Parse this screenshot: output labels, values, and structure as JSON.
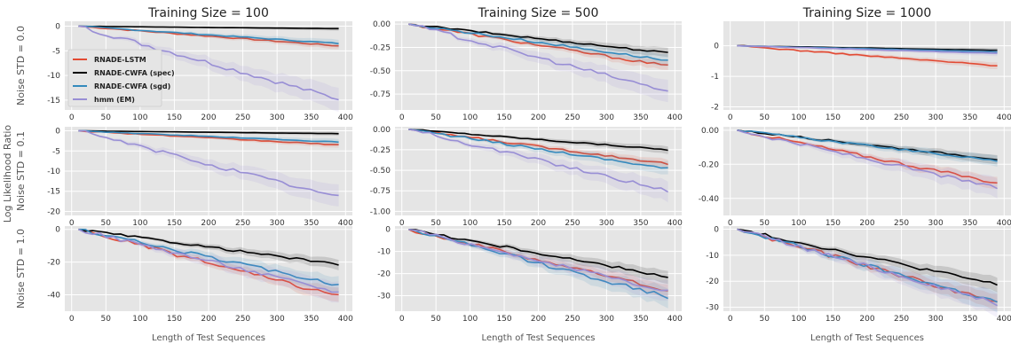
{
  "figure": {
    "ylabel_shared": "Log Likelihood Ratio",
    "xlabel": "Length of Test Sequences",
    "legend": [
      "RNADE-LSTM",
      "RNADE-CWFA (spec)",
      "RNADE-CWFA (sgd)",
      "hmm (EM)"
    ]
  },
  "colors": {
    "RNADE-LSTM": "#e24a33",
    "RNADE-CWFA (spec)": "#000000",
    "RNADE-CWFA (sgd)": "#348abd",
    "hmm (EM)": "#988ed5",
    "panel_bg": "#e5e5e5",
    "grid": "#ffffff"
  },
  "chart_data": [
    {
      "type": "line",
      "title": "Training Size = 100",
      "ylabel": "Noise STD = 0.0",
      "xlabel": "",
      "xlim": [
        -10,
        410
      ],
      "ylim": [
        -17,
        1
      ],
      "yticks": [
        0,
        -5,
        -10,
        -15
      ],
      "xticks": [
        0,
        50,
        100,
        150,
        200,
        250,
        300,
        350,
        400
      ],
      "legend": "upper-left",
      "x": [
        10,
        390
      ],
      "series": [
        {
          "name": "RNADE-LSTM",
          "values": [
            0,
            -4.0
          ]
        },
        {
          "name": "RNADE-CWFA (spec)",
          "values": [
            0,
            -0.5
          ]
        },
        {
          "name": "RNADE-CWFA (sgd)",
          "values": [
            0,
            -3.5
          ]
        },
        {
          "name": "hmm (EM)",
          "values": [
            0,
            -14.8
          ]
        }
      ]
    },
    {
      "type": "line",
      "title": "Training Size = 500",
      "ylabel": "",
      "xlabel": "",
      "xlim": [
        -10,
        410
      ],
      "ylim": [
        -0.92,
        0.03
      ],
      "yticks": [
        0,
        -0.25,
        -0.5,
        -0.75
      ],
      "xticks": [
        0,
        50,
        100,
        150,
        200,
        250,
        300,
        350,
        400
      ],
      "x": [
        10,
        390
      ],
      "series": [
        {
          "name": "RNADE-LSTM",
          "values": [
            0,
            -0.45
          ]
        },
        {
          "name": "RNADE-CWFA (spec)",
          "values": [
            0,
            -0.31
          ]
        },
        {
          "name": "RNADE-CWFA (sgd)",
          "values": [
            0,
            -0.39
          ]
        },
        {
          "name": "hmm (EM)",
          "values": [
            0,
            -0.72
          ]
        }
      ]
    },
    {
      "type": "line",
      "title": "Training Size = 1000",
      "ylabel": "",
      "xlabel": "",
      "xlim": [
        -10,
        410
      ],
      "ylim": [
        -2.1,
        0.8
      ],
      "yticks": [
        0,
        -1,
        -2
      ],
      "xticks": [
        0,
        50,
        100,
        150,
        200,
        250,
        300,
        350,
        400
      ],
      "x": [
        10,
        390
      ],
      "series": [
        {
          "name": "RNADE-LSTM",
          "values": [
            0,
            -0.65
          ]
        },
        {
          "name": "RNADE-CWFA (spec)",
          "values": [
            0,
            -0.15
          ]
        },
        {
          "name": "RNADE-CWFA (sgd)",
          "values": [
            0,
            -0.2
          ]
        },
        {
          "name": "hmm (EM)",
          "values": [
            0,
            -0.25
          ]
        }
      ]
    },
    {
      "type": "line",
      "title": "",
      "ylabel": "Noise STD = 0.1",
      "xlabel": "",
      "xlim": [
        -10,
        410
      ],
      "ylim": [
        -21,
        1
      ],
      "yticks": [
        0,
        -5,
        -10,
        -15,
        -20
      ],
      "xticks": [
        0,
        50,
        100,
        150,
        200,
        250,
        300,
        350,
        400
      ],
      "x": [
        10,
        390
      ],
      "series": [
        {
          "name": "RNADE-LSTM",
          "values": [
            0,
            -3.5
          ]
        },
        {
          "name": "RNADE-CWFA (spec)",
          "values": [
            0,
            -0.7
          ]
        },
        {
          "name": "RNADE-CWFA (sgd)",
          "values": [
            0,
            -2.8
          ]
        },
        {
          "name": "hmm (EM)",
          "values": [
            0,
            -16.5
          ]
        }
      ]
    },
    {
      "type": "line",
      "title": "",
      "ylabel": "",
      "xlabel": "",
      "xlim": [
        -10,
        410
      ],
      "ylim": [
        -1.05,
        0.03
      ],
      "yticks": [
        0,
        -0.25,
        -0.5,
        -0.75,
        -1.0
      ],
      "xticks": [
        0,
        50,
        100,
        150,
        200,
        250,
        300,
        350,
        400
      ],
      "x": [
        10,
        390
      ],
      "series": [
        {
          "name": "RNADE-LSTM",
          "values": [
            0,
            -0.42
          ]
        },
        {
          "name": "RNADE-CWFA (spec)",
          "values": [
            0,
            -0.25
          ]
        },
        {
          "name": "RNADE-CWFA (sgd)",
          "values": [
            0,
            -0.48
          ]
        },
        {
          "name": "hmm (EM)",
          "values": [
            0,
            -0.75
          ]
        }
      ]
    },
    {
      "type": "line",
      "title": "",
      "ylabel": "",
      "xlabel": "",
      "xlim": [
        -10,
        410
      ],
      "ylim": [
        -0.5,
        0.02
      ],
      "yticks": [
        0,
        -0.2,
        -0.4
      ],
      "xticks": [
        0,
        50,
        100,
        150,
        200,
        250,
        300,
        350,
        400
      ],
      "x": [
        10,
        390
      ],
      "series": [
        {
          "name": "RNADE-LSTM",
          "values": [
            0,
            -0.31
          ]
        },
        {
          "name": "RNADE-CWFA (spec)",
          "values": [
            0,
            -0.17
          ]
        },
        {
          "name": "RNADE-CWFA (sgd)",
          "values": [
            0,
            -0.18
          ]
        },
        {
          "name": "hmm (EM)",
          "values": [
            0,
            -0.34
          ]
        }
      ]
    },
    {
      "type": "line",
      "title": "",
      "ylabel": "Noise STD = 1.0",
      "xlabel": "Length of Test Sequences",
      "xlim": [
        -10,
        410
      ],
      "ylim": [
        -50,
        2
      ],
      "yticks": [
        0,
        -20,
        -40
      ],
      "xticks": [
        0,
        50,
        100,
        150,
        200,
        250,
        300,
        350,
        400
      ],
      "x": [
        10,
        390
      ],
      "series": [
        {
          "name": "RNADE-LSTM",
          "values": [
            0,
            -41
          ]
        },
        {
          "name": "RNADE-CWFA (spec)",
          "values": [
            0,
            -21.5
          ]
        },
        {
          "name": "RNADE-CWFA (sgd)",
          "values": [
            0,
            -34
          ]
        },
        {
          "name": "hmm (EM)",
          "values": [
            0,
            -38.5
          ]
        }
      ]
    },
    {
      "type": "line",
      "title": "",
      "ylabel": "",
      "xlabel": "Length of Test Sequences",
      "xlim": [
        -10,
        410
      ],
      "ylim": [
        -37,
        1.5
      ],
      "yticks": [
        0,
        -10,
        -20,
        -30
      ],
      "xticks": [
        0,
        50,
        100,
        150,
        200,
        250,
        300,
        350,
        400
      ],
      "x": [
        10,
        390
      ],
      "series": [
        {
          "name": "RNADE-LSTM",
          "values": [
            0,
            -27.5
          ]
        },
        {
          "name": "RNADE-CWFA (spec)",
          "values": [
            0,
            -21.5
          ]
        },
        {
          "name": "RNADE-CWFA (sgd)",
          "values": [
            0,
            -30.5
          ]
        },
        {
          "name": "hmm (EM)",
          "values": [
            0,
            -28
          ]
        }
      ]
    },
    {
      "type": "line",
      "title": "",
      "ylabel": "",
      "xlabel": "Length of Test Sequences",
      "xlim": [
        -10,
        410
      ],
      "ylim": [
        -31.5,
        1.2
      ],
      "yticks": [
        0,
        -10,
        -20,
        -30
      ],
      "xticks": [
        0,
        50,
        100,
        150,
        200,
        250,
        300,
        350,
        400
      ],
      "x": [
        10,
        390
      ],
      "series": [
        {
          "name": "RNADE-LSTM",
          "values": [
            0,
            -28.2
          ]
        },
        {
          "name": "RNADE-CWFA (spec)",
          "values": [
            0,
            -21.3
          ]
        },
        {
          "name": "RNADE-CWFA (sgd)",
          "values": [
            0,
            -28
          ]
        },
        {
          "name": "hmm (EM)",
          "values": [
            0,
            -28.5
          ]
        }
      ]
    }
  ]
}
